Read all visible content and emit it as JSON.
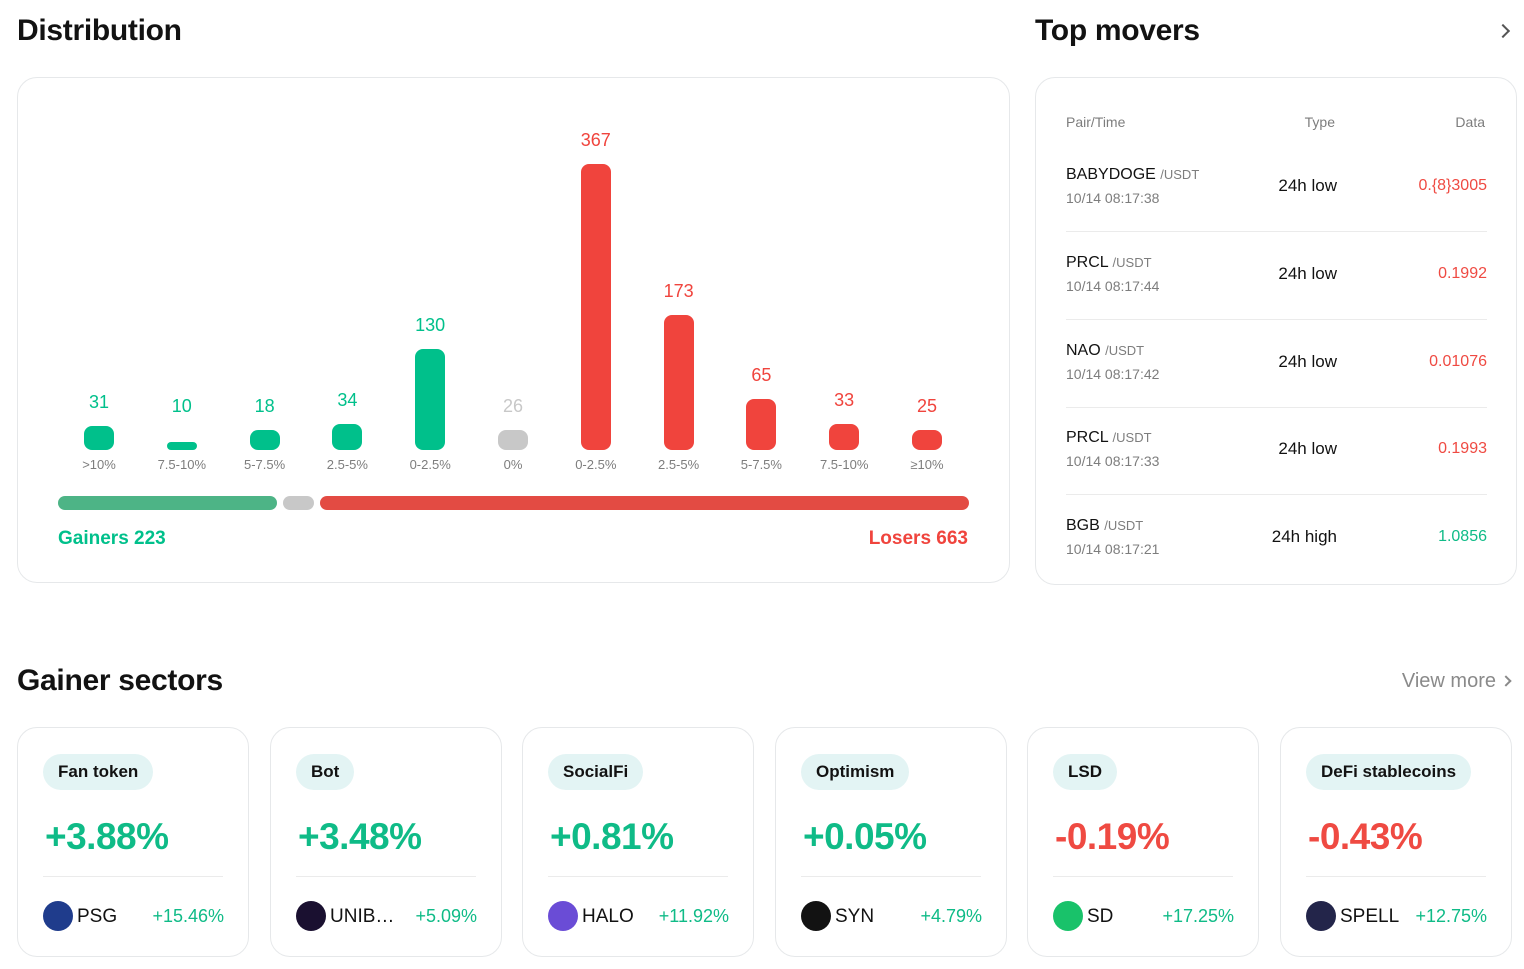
{
  "colors": {
    "gainer": "#00c08b",
    "loser": "#f0443d",
    "flat": "#c8c8c8",
    "up_text": "#0fbb87",
    "down_text": "#ef4a42",
    "gainer_split": "#4db486"
  },
  "distribution": {
    "title": "Distribution",
    "gainers_label": "Gainers 223",
    "losers_label": "Losers 663"
  },
  "chart_data": {
    "type": "bar",
    "categories": [
      ">10%",
      "7.5-10%",
      "5-7.5%",
      "2.5-5%",
      "0-2.5%",
      "0%",
      "0-2.5%",
      "2.5-5%",
      "5-7.5%",
      "7.5-10%",
      "≥10%"
    ],
    "values": [
      31,
      10,
      18,
      34,
      130,
      26,
      367,
      173,
      65,
      33,
      25
    ],
    "value_labels": [
      "31",
      "10",
      "18",
      "34",
      "130",
      "26",
      "367",
      "173",
      "65",
      "33",
      "25"
    ],
    "groups": [
      "gainer",
      "gainer",
      "gainer",
      "gainer",
      "gainer",
      "flat",
      "loser",
      "loser",
      "loser",
      "loser",
      "loser"
    ],
    "title": "",
    "xlabel": "",
    "ylabel": "",
    "grid": false
  },
  "top_movers": {
    "title": "Top movers",
    "headers": {
      "pair": "Pair/Time",
      "type": "Type",
      "data": "Data"
    },
    "rows": [
      {
        "base": "BABYDOGE",
        "quote": "/USDT",
        "time": "10/14 08:17:38",
        "type": "24h low",
        "data": "0.{8}3005",
        "dir": "down"
      },
      {
        "base": "PRCL",
        "quote": "/USDT",
        "time": "10/14 08:17:44",
        "type": "24h low",
        "data": "0.1992",
        "dir": "down"
      },
      {
        "base": "NAO",
        "quote": "/USDT",
        "time": "10/14 08:17:42",
        "type": "24h low",
        "data": "0.01076",
        "dir": "down"
      },
      {
        "base": "PRCL",
        "quote": "/USDT",
        "time": "10/14 08:17:33",
        "type": "24h low",
        "data": "0.1993",
        "dir": "down"
      },
      {
        "base": "BGB",
        "quote": "/USDT",
        "time": "10/14 08:17:21",
        "type": "24h high",
        "data": "1.0856",
        "dir": "up"
      }
    ]
  },
  "gainer_sectors": {
    "title": "Gainer sectors",
    "view_more": "View more",
    "cards": [
      {
        "tag": "Fan token",
        "change": "+3.88%",
        "dir": "up",
        "coin": "PSG",
        "coin_change": "+15.46%",
        "icon": "psg-coin-icon",
        "icon_color": "#1f3c8c"
      },
      {
        "tag": "Bot",
        "change": "+3.48%",
        "dir": "up",
        "coin": "UNIBOT",
        "coin_change": "+5.09%",
        "icon": "unibot-coin-icon",
        "icon_color": "#1a1030"
      },
      {
        "tag": "SocialFi",
        "change": "+0.81%",
        "dir": "up",
        "coin": "HALO",
        "coin_change": "+11.92%",
        "icon": "halo-coin-icon",
        "icon_color": "#6a4cd6"
      },
      {
        "tag": "Optimism",
        "change": "+0.05%",
        "dir": "up",
        "coin": "SYN",
        "coin_change": "+4.79%",
        "icon": "syn-coin-icon",
        "icon_color": "#121212"
      },
      {
        "tag": "LSD",
        "change": "-0.19%",
        "dir": "down",
        "coin": "SD",
        "coin_change": "+17.25%",
        "icon": "sd-coin-icon",
        "icon_color": "#19c26a"
      },
      {
        "tag": "DeFi stablecoins",
        "change": "-0.43%",
        "dir": "down",
        "coin": "SPELL",
        "coin_change": "+12.75%",
        "icon": "spell-coin-icon",
        "icon_color": "#23254a"
      }
    ]
  }
}
